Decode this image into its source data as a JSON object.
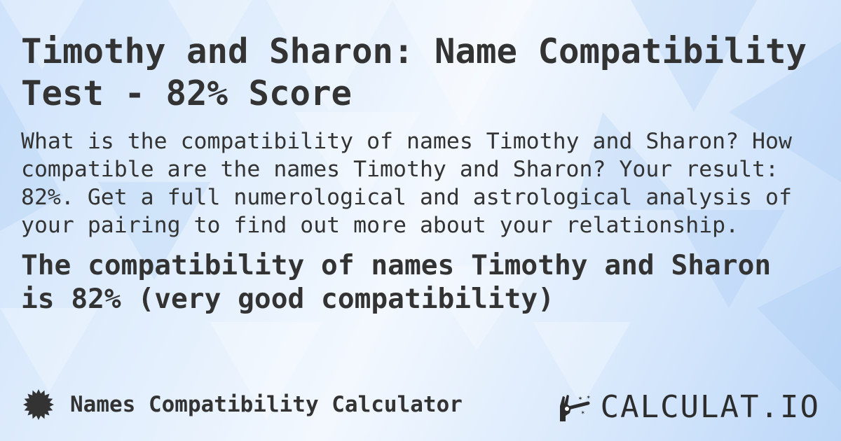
{
  "title": "Timothy and Sharon: Name Compatibility Test - 82% Score",
  "description": "What is the compatibility of names Timothy and Sharon? How compatible are the names Timothy and Sharon? Your result: 82%. Get a full numerological and astrological analysis of your pairing to find out more about your relationship.",
  "result": "The compatibility of names Timothy and Sharon is 82% (very good compatibility)",
  "footer": {
    "icon": "badge-seal-icon",
    "label": "Names Compatibility Calculator"
  },
  "logo": {
    "icon": "magic-wand-hand-icon",
    "text": "CALCULAT.IO"
  },
  "colors": {
    "text": "#333333",
    "background": "#dbe9fb"
  }
}
